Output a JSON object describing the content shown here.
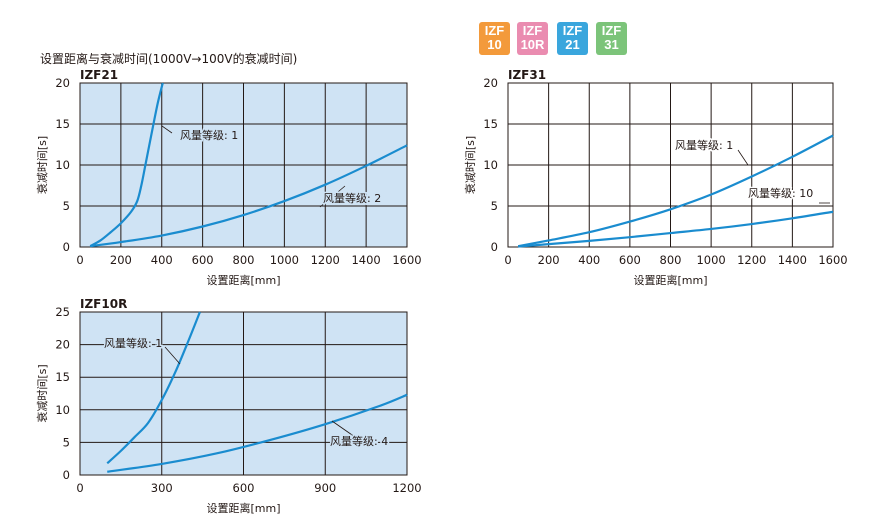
{
  "badges": [
    {
      "line1": "IZF",
      "line2": "10",
      "color": "#f39a3b"
    },
    {
      "line1": "IZF",
      "line2": "10R",
      "color": "#ea8cb0"
    },
    {
      "line1": "IZF",
      "line2": "21",
      "color": "#3aa6dd"
    },
    {
      "line1": "IZF",
      "line2": "31",
      "color": "#7cc47a"
    }
  ],
  "page_title": "设置距离与衰减时间(1000V→100V的衰减时间)",
  "chart_data": [
    {
      "type": "line",
      "title": "IZF21",
      "xlabel": "设置距离[mm]",
      "ylabel": "衰减时间[s]",
      "xlim": [
        0,
        1600
      ],
      "ylim": [
        0,
        20
      ],
      "xticks": [
        0,
        200,
        400,
        600,
        800,
        1000,
        1200,
        1400,
        1600
      ],
      "yticks": [
        0,
        5,
        10,
        15,
        20
      ],
      "grid": true,
      "plot_bg": "#cfe3f4",
      "line_color": "#1a8ccf",
      "series": [
        {
          "name": "风量等级: 1",
          "x": [
            50,
            100,
            150,
            200,
            250,
            280,
            300,
            320,
            350,
            380,
            405
          ],
          "y": [
            0.1,
            0.8,
            1.8,
            2.9,
            4.3,
            5.6,
            7.5,
            10.0,
            13.8,
            17.5,
            20
          ]
        },
        {
          "name": "风量等级: 2",
          "x": [
            50,
            200,
            400,
            600,
            800,
            1000,
            1200,
            1400,
            1600
          ],
          "y": [
            0.1,
            0.6,
            1.4,
            2.5,
            3.9,
            5.6,
            7.6,
            9.9,
            12.4
          ]
        }
      ]
    },
    {
      "type": "line",
      "title": "IZF31",
      "xlabel": "设置距离[mm]",
      "ylabel": "衰减时间[s]",
      "xlim": [
        0,
        1600
      ],
      "ylim": [
        0,
        20
      ],
      "xticks": [
        0,
        200,
        400,
        600,
        800,
        1000,
        1200,
        1400,
        1600
      ],
      "yticks": [
        0,
        5,
        10,
        15,
        20
      ],
      "grid": true,
      "plot_bg": "#ffffff",
      "line_color": "#1a8ccf",
      "series": [
        {
          "name": "风量等级: 1",
          "x": [
            50,
            200,
            400,
            600,
            800,
            1000,
            1200,
            1400,
            1600
          ],
          "y": [
            0.1,
            0.8,
            1.8,
            3.1,
            4.6,
            6.4,
            8.6,
            11.0,
            13.6
          ]
        },
        {
          "name": "风量等级: 10",
          "x": [
            50,
            200,
            400,
            600,
            800,
            1000,
            1200,
            1400,
            1600
          ],
          "y": [
            0.05,
            0.35,
            0.75,
            1.2,
            1.7,
            2.2,
            2.8,
            3.5,
            4.3
          ]
        }
      ]
    },
    {
      "type": "line",
      "title": "IZF10R",
      "xlabel": "设置距离[mm]",
      "ylabel": "衰减时间[s]",
      "xlim": [
        0,
        1200
      ],
      "ylim": [
        0,
        25
      ],
      "xticks": [
        0,
        300,
        600,
        900,
        1200
      ],
      "yticks": [
        0,
        5,
        10,
        15,
        20,
        25
      ],
      "grid": true,
      "plot_bg": "#cfe3f4",
      "line_color": "#1a8ccf",
      "series": [
        {
          "name": "风量等级: 1",
          "x": [
            100,
            150,
            200,
            250,
            300,
            350,
            400,
            440
          ],
          "y": [
            1.8,
            3.7,
            5.8,
            8.0,
            11.5,
            15.8,
            20.8,
            25
          ]
        },
        {
          "name": "风量等级: 4",
          "x": [
            100,
            300,
            500,
            700,
            900,
            1100,
            1200
          ],
          "y": [
            0.5,
            1.7,
            3.3,
            5.4,
            7.8,
            10.6,
            12.3
          ]
        }
      ]
    }
  ]
}
